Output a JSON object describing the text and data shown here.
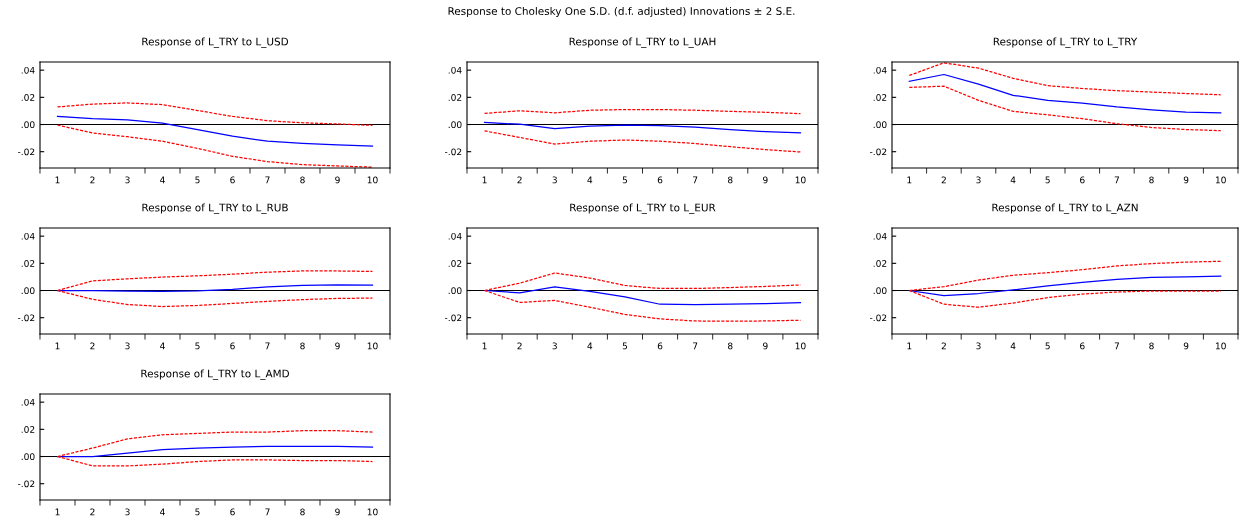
{
  "chart_data": [
    {
      "type": "line",
      "title": "Response of L_TRY to L_USD",
      "annotations": [
        "Response to Cholesky One S.D. (d.f. adjusted) Innovations ± 2 S.E."
      ],
      "x": [
        1,
        2,
        3,
        4,
        5,
        6,
        7,
        8,
        9,
        10
      ],
      "xlim": [
        0.5,
        10.5
      ],
      "xticks": [
        {
          "value": 0.5,
          "label": null
        },
        1,
        {
          "value": 1.5,
          "label": null
        },
        2,
        {
          "value": 2.5,
          "label": null
        },
        3,
        {
          "value": 3.5,
          "label": null
        },
        4,
        {
          "value": 4.5,
          "label": null
        },
        5,
        {
          "value": 5.5,
          "label": null
        },
        6,
        {
          "value": 6.5,
          "label": null
        },
        7,
        {
          "value": 7.5,
          "label": null
        },
        8,
        {
          "value": 8.5,
          "label": null
        },
        9,
        {
          "value": 9.5,
          "label": null
        },
        10,
        {
          "value": 10.5,
          "label": null
        }
      ],
      "ylim": [
        -0.032,
        0.046
      ],
      "yticks": [
        {
          "value": -0.02,
          "label": "-.02"
        },
        {
          "value": 0.0,
          "label": ".00"
        },
        {
          "value": 0.02,
          "label": ".02"
        },
        {
          "value": 0.04,
          "label": ".04"
        }
      ],
      "grid": false,
      "ref_lines": [
        {
          "axis": "y",
          "value": 0,
          "color": "#000000"
        }
      ],
      "series": [
        {
          "color": "#0000ff",
          "line_style": "solid",
          "values": [
            0.006,
            0.0043,
            0.0034,
            0.0011,
            -0.0037,
            -0.0086,
            -0.0123,
            -0.0138,
            -0.015,
            -0.0159
          ]
        },
        {
          "color": "#ff0000",
          "line_style": "dashed",
          "values": [
            0.0129,
            0.015,
            0.0159,
            0.0146,
            0.0103,
            0.006,
            0.0028,
            0.0013,
            0.0004,
            -0.0006
          ]
        },
        {
          "color": "#ff0000",
          "line_style": "dashed",
          "values": [
            -0.0004,
            -0.0062,
            -0.009,
            -0.0123,
            -0.0176,
            -0.0234,
            -0.0273,
            -0.0295,
            -0.0305,
            -0.0314
          ]
        }
      ]
    },
    {
      "type": "line",
      "title": "Response of L_TRY to L_UAH",
      "x": [
        1,
        2,
        3,
        4,
        5,
        6,
        7,
        8,
        9,
        10
      ],
      "xlim": [
        0.5,
        10.5
      ],
      "xticks": [
        {
          "value": 0.5,
          "label": null
        },
        1,
        {
          "value": 1.5,
          "label": null
        },
        2,
        {
          "value": 2.5,
          "label": null
        },
        3,
        {
          "value": 3.5,
          "label": null
        },
        4,
        {
          "value": 4.5,
          "label": null
        },
        5,
        {
          "value": 5.5,
          "label": null
        },
        6,
        {
          "value": 6.5,
          "label": null
        },
        7,
        {
          "value": 7.5,
          "label": null
        },
        8,
        {
          "value": 8.5,
          "label": null
        },
        9,
        {
          "value": 9.5,
          "label": null
        },
        10,
        {
          "value": 10.5,
          "label": null
        }
      ],
      "ylim": [
        -0.032,
        0.046
      ],
      "yticks": [
        {
          "value": -0.02,
          "label": "-.02"
        },
        {
          "value": 0.0,
          "label": ".00"
        },
        {
          "value": 0.02,
          "label": ".02"
        },
        {
          "value": 0.04,
          "label": ".04"
        }
      ],
      "grid": false,
      "ref_lines": [
        {
          "axis": "y",
          "value": 0,
          "color": "#000000"
        }
      ],
      "series": [
        {
          "color": "#0000ff",
          "line_style": "solid",
          "values": [
            0.0015,
            0.0002,
            -0.003,
            -0.0011,
            -0.0004,
            -0.0009,
            -0.0019,
            -0.0037,
            -0.0052,
            -0.0062
          ]
        },
        {
          "color": "#ff0000",
          "line_style": "dashed",
          "values": [
            0.0082,
            0.0101,
            0.0086,
            0.0105,
            0.011,
            0.011,
            0.0105,
            0.0097,
            0.009,
            0.008
          ]
        },
        {
          "color": "#ff0000",
          "line_style": "dashed",
          "values": [
            -0.0047,
            -0.0095,
            -0.0144,
            -0.0123,
            -0.0114,
            -0.0123,
            -0.014,
            -0.0163,
            -0.0185,
            -0.0202
          ]
        }
      ]
    },
    {
      "type": "line",
      "title": "Response of L_TRY to L_TRY",
      "x": [
        1,
        2,
        3,
        4,
        5,
        6,
        7,
        8,
        9,
        10
      ],
      "xlim": [
        0.5,
        10.5
      ],
      "xticks": [
        {
          "value": 0.5,
          "label": null
        },
        1,
        {
          "value": 1.5,
          "label": null
        },
        2,
        {
          "value": 2.5,
          "label": null
        },
        3,
        {
          "value": 3.5,
          "label": null
        },
        4,
        {
          "value": 4.5,
          "label": null
        },
        5,
        {
          "value": 5.5,
          "label": null
        },
        6,
        {
          "value": 6.5,
          "label": null
        },
        7,
        {
          "value": 7.5,
          "label": null
        },
        8,
        {
          "value": 8.5,
          "label": null
        },
        9,
        {
          "value": 9.5,
          "label": null
        },
        10,
        {
          "value": 10.5,
          "label": null
        }
      ],
      "ylim": [
        -0.032,
        0.046
      ],
      "yticks": [
        {
          "value": -0.02,
          "label": "-.02"
        },
        {
          "value": 0.0,
          "label": ".00"
        },
        {
          "value": 0.02,
          "label": ".02"
        },
        {
          "value": 0.04,
          "label": ".04"
        }
      ],
      "grid": false,
      "ref_lines": [
        {
          "axis": "y",
          "value": 0,
          "color": "#000000"
        }
      ],
      "series": [
        {
          "color": "#0000ff",
          "line_style": "solid",
          "values": [
            0.0318,
            0.0368,
            0.0297,
            0.0215,
            0.0178,
            0.0157,
            0.0129,
            0.0108,
            0.0092,
            0.0086
          ]
        },
        {
          "color": "#ff0000",
          "line_style": "dashed",
          "values": [
            0.0361,
            0.0454,
            0.0415,
            0.034,
            0.0286,
            0.0265,
            0.0249,
            0.0239,
            0.0228,
            0.0219
          ]
        },
        {
          "color": "#ff0000",
          "line_style": "dashed",
          "values": [
            0.0273,
            0.0282,
            0.0178,
            0.0097,
            0.0071,
            0.0043,
            0.0006,
            -0.0022,
            -0.0037,
            -0.0045
          ]
        }
      ]
    },
    {
      "type": "line",
      "title": "Response of L_TRY to L_RUB",
      "x": [
        1,
        2,
        3,
        4,
        5,
        6,
        7,
        8,
        9,
        10
      ],
      "xlim": [
        0.5,
        10.5
      ],
      "xticks": [
        {
          "value": 0.5,
          "label": null
        },
        1,
        {
          "value": 1.5,
          "label": null
        },
        2,
        {
          "value": 2.5,
          "label": null
        },
        3,
        {
          "value": 3.5,
          "label": null
        },
        4,
        {
          "value": 4.5,
          "label": null
        },
        5,
        {
          "value": 5.5,
          "label": null
        },
        6,
        {
          "value": 6.5,
          "label": null
        },
        7,
        {
          "value": 7.5,
          "label": null
        },
        8,
        {
          "value": 8.5,
          "label": null
        },
        9,
        {
          "value": 9.5,
          "label": null
        },
        10,
        {
          "value": 10.5,
          "label": null
        }
      ],
      "ylim": [
        -0.032,
        0.046
      ],
      "yticks": [
        {
          "value": -0.02,
          "label": "-.02"
        },
        {
          "value": 0.0,
          "label": ".00"
        },
        {
          "value": 0.02,
          "label": ".02"
        },
        {
          "value": 0.04,
          "label": ".04"
        }
      ],
      "grid": false,
      "ref_lines": [
        {
          "axis": "y",
          "value": 0,
          "color": "#000000"
        }
      ],
      "series": [
        {
          "color": "#0000ff",
          "line_style": "solid",
          "values": [
            0,
            0,
            -0.0004,
            -0.0006,
            -0.0002,
            0.0009,
            0.0026,
            0.0037,
            0.0041,
            0.0039
          ]
        },
        {
          "color": "#ff0000",
          "line_style": "dashed",
          "values": [
            0,
            0.0071,
            0.0086,
            0.0099,
            0.0108,
            0.012,
            0.0135,
            0.0144,
            0.0144,
            0.014
          ]
        },
        {
          "color": "#ff0000",
          "line_style": "dashed",
          "values": [
            0,
            -0.0065,
            -0.0103,
            -0.0118,
            -0.011,
            -0.0095,
            -0.008,
            -0.0067,
            -0.0058,
            -0.0056
          ]
        }
      ]
    },
    {
      "type": "line",
      "title": "Response of L_TRY to L_EUR",
      "x": [
        1,
        2,
        3,
        4,
        5,
        6,
        7,
        8,
        9,
        10
      ],
      "xlim": [
        0.5,
        10.5
      ],
      "xticks": [
        {
          "value": 0.5,
          "label": null
        },
        1,
        {
          "value": 1.5,
          "label": null
        },
        2,
        {
          "value": 2.5,
          "label": null
        },
        3,
        {
          "value": 3.5,
          "label": null
        },
        4,
        {
          "value": 4.5,
          "label": null
        },
        5,
        {
          "value": 5.5,
          "label": null
        },
        6,
        {
          "value": 6.5,
          "label": null
        },
        7,
        {
          "value": 7.5,
          "label": null
        },
        8,
        {
          "value": 8.5,
          "label": null
        },
        9,
        {
          "value": 9.5,
          "label": null
        },
        10,
        {
          "value": 10.5,
          "label": null
        }
      ],
      "ylim": [
        -0.032,
        0.046
      ],
      "yticks": [
        {
          "value": -0.02,
          "label": "-.02"
        },
        {
          "value": 0.0,
          "label": ".00"
        },
        {
          "value": 0.02,
          "label": ".02"
        },
        {
          "value": 0.04,
          "label": ".04"
        }
      ],
      "grid": false,
      "ref_lines": [
        {
          "axis": "y",
          "value": 0,
          "color": "#000000"
        }
      ],
      "series": [
        {
          "color": "#0000ff",
          "line_style": "solid",
          "values": [
            0,
            -0.0017,
            0.0026,
            -0.0006,
            -0.0047,
            -0.0101,
            -0.0103,
            -0.0101,
            -0.0097,
            -0.009
          ]
        },
        {
          "color": "#ff0000",
          "line_style": "dashed",
          "values": [
            0,
            0.0054,
            0.0129,
            0.0092,
            0.0037,
            0.0015,
            0.0015,
            0.0022,
            0.003,
            0.0041
          ]
        },
        {
          "color": "#ff0000",
          "line_style": "dashed",
          "values": [
            0,
            -0.0088,
            -0.0073,
            -0.0123,
            -0.0176,
            -0.0209,
            -0.0224,
            -0.0226,
            -0.0224,
            -0.0219
          ]
        }
      ]
    },
    {
      "type": "line",
      "title": "Response of L_TRY to L_AZN",
      "x": [
        1,
        2,
        3,
        4,
        5,
        6,
        7,
        8,
        9,
        10
      ],
      "xlim": [
        0.5,
        10.5
      ],
      "xticks": [
        {
          "value": 0.5,
          "label": null
        },
        1,
        {
          "value": 1.5,
          "label": null
        },
        2,
        {
          "value": 2.5,
          "label": null
        },
        3,
        {
          "value": 3.5,
          "label": null
        },
        4,
        {
          "value": 4.5,
          "label": null
        },
        5,
        {
          "value": 5.5,
          "label": null
        },
        6,
        {
          "value": 6.5,
          "label": null
        },
        7,
        {
          "value": 7.5,
          "label": null
        },
        8,
        {
          "value": 8.5,
          "label": null
        },
        9,
        {
          "value": 9.5,
          "label": null
        },
        10,
        {
          "value": 10.5,
          "label": null
        }
      ],
      "ylim": [
        -0.032,
        0.046
      ],
      "yticks": [
        {
          "value": -0.02,
          "label": "-.02"
        },
        {
          "value": 0.0,
          "label": ".00"
        },
        {
          "value": 0.02,
          "label": ".02"
        },
        {
          "value": 0.04,
          "label": ".04"
        }
      ],
      "grid": false,
      "ref_lines": [
        {
          "axis": "y",
          "value": 0,
          "color": "#000000"
        }
      ],
      "series": [
        {
          "color": "#0000ff",
          "line_style": "solid",
          "values": [
            0,
            -0.0037,
            -0.0022,
            0.0004,
            0.0034,
            0.006,
            0.0082,
            0.0097,
            0.0101,
            0.0105
          ]
        },
        {
          "color": "#ff0000",
          "line_style": "dashed",
          "values": [
            0,
            0.0028,
            0.0077,
            0.0112,
            0.0131,
            0.0153,
            0.0181,
            0.0198,
            0.0209,
            0.0215
          ]
        },
        {
          "color": "#ff0000",
          "line_style": "dashed",
          "values": [
            0,
            -0.0101,
            -0.0123,
            -0.0092,
            -0.0052,
            -0.0026,
            -0.0011,
            -0.0004,
            -0.0004,
            -0.0004
          ]
        }
      ]
    },
    {
      "type": "line",
      "title": "Response of L_TRY to L_AMD",
      "x": [
        1,
        2,
        3,
        4,
        5,
        6,
        7,
        8,
        9,
        10
      ],
      "xlim": [
        0.5,
        10.5
      ],
      "xticks": [
        {
          "value": 0.5,
          "label": null
        },
        1,
        {
          "value": 1.5,
          "label": null
        },
        2,
        {
          "value": 2.5,
          "label": null
        },
        3,
        {
          "value": 3.5,
          "label": null
        },
        4,
        {
          "value": 4.5,
          "label": null
        },
        5,
        {
          "value": 5.5,
          "label": null
        },
        6,
        {
          "value": 6.5,
          "label": null
        },
        7,
        {
          "value": 7.5,
          "label": null
        },
        8,
        {
          "value": 8.5,
          "label": null
        },
        9,
        {
          "value": 9.5,
          "label": null
        },
        10,
        {
          "value": 10.5,
          "label": null
        }
      ],
      "ylim": [
        -0.032,
        0.046
      ],
      "yticks": [
        {
          "value": -0.02,
          "label": "-.02"
        },
        {
          "value": 0.0,
          "label": ".00"
        },
        {
          "value": 0.02,
          "label": ".02"
        },
        {
          "value": 0.04,
          "label": ".04"
        }
      ],
      "grid": false,
      "ref_lines": [
        {
          "axis": "y",
          "value": 0,
          "color": "#000000"
        }
      ],
      "series": [
        {
          "color": "#0000ff",
          "line_style": "solid",
          "values": [
            0,
            0,
            0.0025,
            0.005,
            0.0062,
            0.0069,
            0.0075,
            0.0075,
            0.0075,
            0.0069
          ]
        },
        {
          "color": "#ff0000",
          "line_style": "dashed",
          "values": [
            0,
            0.0062,
            0.013,
            0.016,
            0.017,
            0.018,
            0.018,
            0.019,
            0.019,
            0.018
          ]
        },
        {
          "color": "#ff0000",
          "line_style": "dashed",
          "values": [
            0,
            -0.0069,
            -0.0069,
            -0.0056,
            -0.0037,
            -0.0025,
            -0.0025,
            -0.003,
            -0.003,
            -0.0037
          ]
        }
      ]
    }
  ]
}
